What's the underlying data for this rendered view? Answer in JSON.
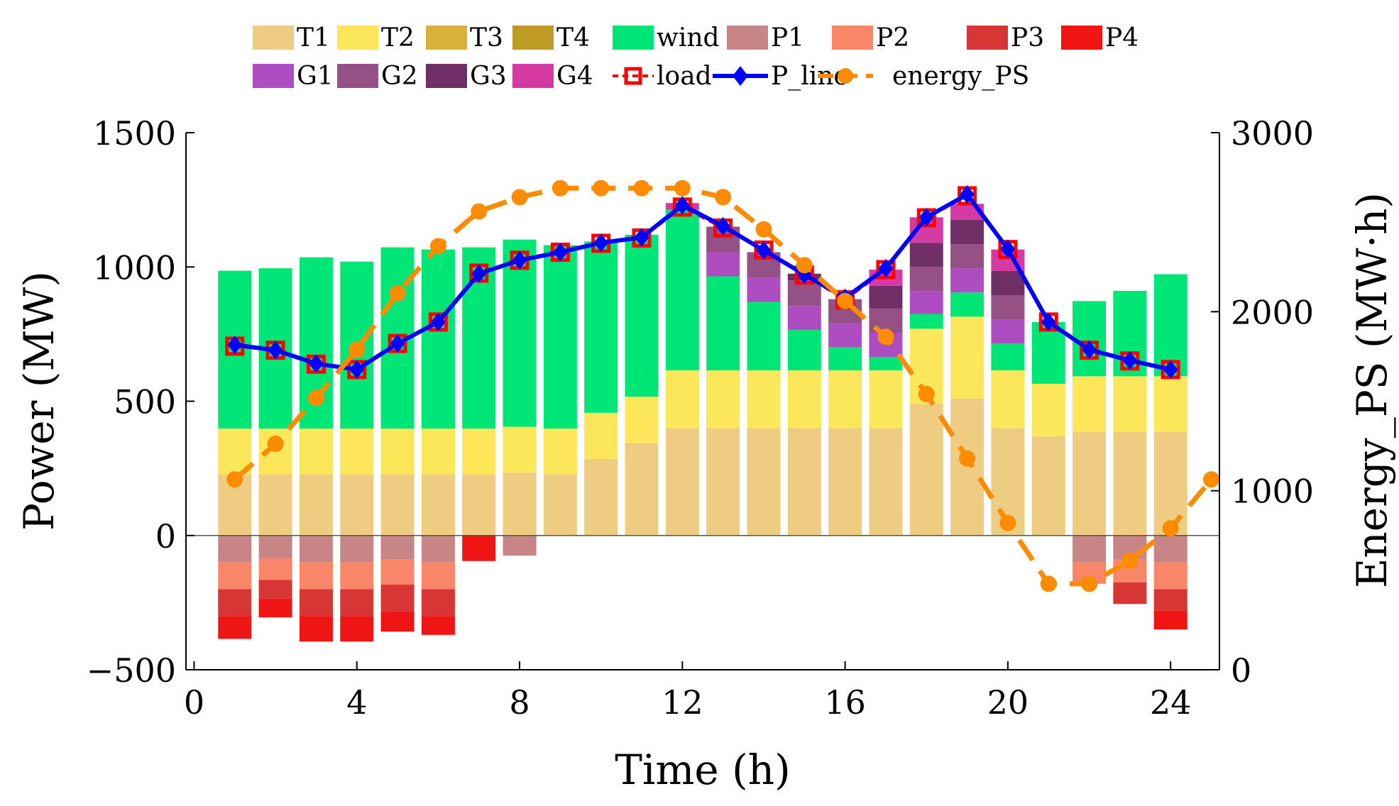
{
  "chart_data": {
    "type": "bar",
    "xlabel": "Time (h)",
    "ylabel": "Power (MW)",
    "y2label": "Energy_PS (MW·h)",
    "xlim": [
      -0.2,
      25.2
    ],
    "ylim": [
      -500,
      1500
    ],
    "y2lim": [
      0,
      3000
    ],
    "xticks": [
      0,
      4,
      8,
      12,
      16,
      20,
      24
    ],
    "yticks": [
      -500,
      0,
      500,
      1000,
      1500
    ],
    "yticklabels": [
      "−500",
      "0",
      "500",
      "1000",
      "1500"
    ],
    "y2ticks": [
      0,
      1000,
      2000,
      3000
    ],
    "legend_position": "top",
    "hours": [
      1,
      2,
      3,
      4,
      5,
      6,
      7,
      8,
      9,
      10,
      11,
      12,
      13,
      14,
      15,
      16,
      17,
      18,
      19,
      20,
      21,
      22,
      23,
      24
    ],
    "bar_series": [
      {
        "name": "T1",
        "color": "#EECC82",
        "values": [
          228,
          228,
          228,
          228,
          228,
          228,
          228,
          235,
          228,
          285,
          345,
          400,
          400,
          400,
          400,
          400,
          400,
          490,
          510,
          400,
          370,
          385,
          385,
          385
        ]
      },
      {
        "name": "T2",
        "color": "#FCE65A",
        "values": [
          170,
          170,
          170,
          170,
          170,
          170,
          170,
          170,
          170,
          172,
          172,
          215,
          215,
          215,
          215,
          215,
          215,
          280,
          305,
          215,
          195,
          208,
          208,
          208
        ]
      },
      {
        "name": "T3",
        "color": "#D9B13A",
        "values": [
          0,
          0,
          0,
          0,
          0,
          0,
          0,
          0,
          0,
          0,
          0,
          0,
          0,
          0,
          0,
          0,
          0,
          0,
          0,
          0,
          0,
          0,
          0,
          0
        ]
      },
      {
        "name": "T4",
        "color": "#BF9A25",
        "values": [
          0,
          0,
          0,
          0,
          0,
          0,
          0,
          0,
          0,
          0,
          0,
          0,
          0,
          0,
          0,
          0,
          0,
          0,
          0,
          0,
          0,
          0,
          0,
          0
        ]
      },
      {
        "name": "wind",
        "color": "#00E676",
        "values": [
          588,
          597,
          638,
          622,
          675,
          667,
          675,
          697,
          683,
          638,
          603,
          598,
          350,
          255,
          150,
          85,
          50,
          55,
          90,
          100,
          230,
          280,
          318,
          380
        ]
      },
      {
        "name": "P1",
        "color": "#C78685",
        "values": [
          -100,
          -85,
          -100,
          -100,
          -88,
          -100,
          0,
          -75,
          0,
          0,
          0,
          0,
          0,
          0,
          0,
          0,
          0,
          0,
          0,
          0,
          0,
          -100,
          -90,
          -100
        ]
      },
      {
        "name": "P2",
        "color": "#FA8669",
        "values": [
          -100,
          -80,
          -100,
          -100,
          -95,
          -100,
          0,
          0,
          0,
          0,
          0,
          0,
          0,
          0,
          0,
          0,
          0,
          0,
          0,
          0,
          0,
          -80,
          -85,
          -100
        ]
      },
      {
        "name": "P3",
        "color": "#D83535",
        "values": [
          -100,
          -70,
          -100,
          -100,
          -100,
          -100,
          0,
          0,
          0,
          0,
          0,
          0,
          0,
          0,
          0,
          0,
          0,
          0,
          0,
          0,
          0,
          0,
          -80,
          -80
        ]
      },
      {
        "name": "P4",
        "color": "#EF1515",
        "values": [
          -85,
          -70,
          -95,
          -95,
          -75,
          -70,
          -95,
          0,
          0,
          0,
          0,
          0,
          0,
          0,
          0,
          0,
          0,
          0,
          0,
          0,
          0,
          0,
          0,
          -70
        ]
      },
      {
        "name": "G1",
        "color": "#AE4DC1",
        "values": [
          0,
          0,
          0,
          0,
          0,
          0,
          0,
          0,
          0,
          0,
          0,
          0,
          90,
          90,
          90,
          90,
          90,
          85,
          90,
          90,
          0,
          0,
          0,
          0
        ]
      },
      {
        "name": "G2",
        "color": "#955085",
        "values": [
          0,
          0,
          0,
          0,
          0,
          0,
          0,
          0,
          0,
          0,
          0,
          0,
          95,
          95,
          95,
          90,
          90,
          90,
          90,
          90,
          0,
          0,
          0,
          0
        ]
      },
      {
        "name": "G3",
        "color": "#6F2F66",
        "values": [
          0,
          0,
          0,
          0,
          0,
          0,
          0,
          0,
          0,
          0,
          0,
          0,
          0,
          0,
          25,
          0,
          85,
          90,
          90,
          90,
          0,
          0,
          0,
          0
        ]
      },
      {
        "name": "G4",
        "color": "#D53AA2",
        "values": [
          0,
          0,
          0,
          0,
          0,
          0,
          0,
          0,
          0,
          0,
          0,
          25,
          0,
          0,
          0,
          0,
          60,
          95,
          60,
          80,
          0,
          0,
          0,
          0
        ]
      }
    ],
    "line_series": [
      {
        "name": "load",
        "color": "#FF0000",
        "axis": "left",
        "values": [
          705,
          690,
          638,
          618,
          715,
          795,
          977,
          1025,
          1055,
          1088,
          1108,
          1223,
          1145,
          1063,
          970,
          878,
          990,
          1183,
          1265,
          1065,
          795,
          690,
          650,
          618
        ]
      },
      {
        "name": "P_line",
        "color": "#0000FF",
        "axis": "left",
        "values": [
          710,
          690,
          640,
          618,
          715,
          795,
          975,
          1025,
          1055,
          1090,
          1110,
          1230,
          1152,
          1062,
          972,
          885,
          995,
          1185,
          1270,
          1067,
          795,
          692,
          652,
          618
        ]
      },
      {
        "name": "energy_PS",
        "color": "#FF8C00",
        "axis": "right",
        "values": [
          1063,
          1262,
          1518,
          1788,
          2104,
          2366,
          2560,
          2640,
          2690,
          2690,
          2690,
          2690,
          2640,
          2460,
          2260,
          2060,
          1860,
          1540,
          1180,
          820,
          480,
          480,
          610,
          790,
          1063
        ]
      }
    ]
  }
}
